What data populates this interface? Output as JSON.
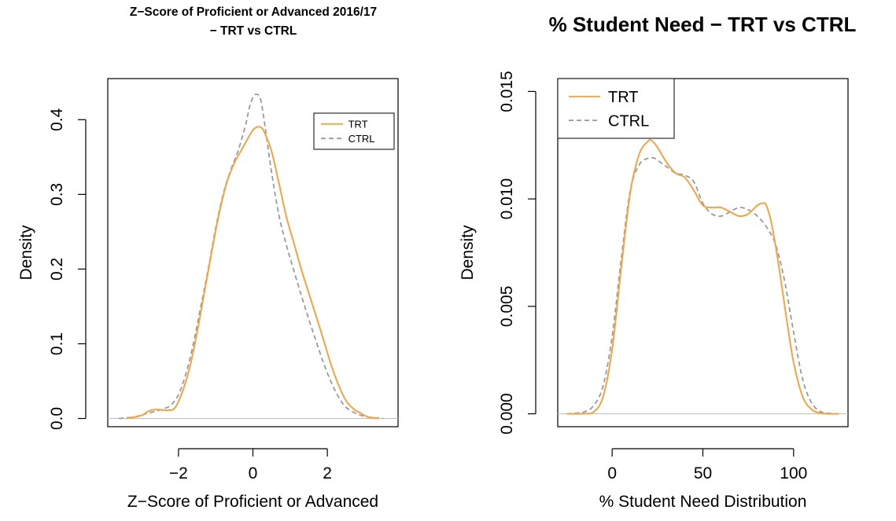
{
  "colors": {
    "trt": "#f4a340",
    "ctrl": "#9a9a9a",
    "baseline": "#bdbdbd"
  },
  "chart_data": [
    {
      "type": "line",
      "title_lines": [
        "Z−Score of Proficient or Advanced 2016/17",
        "− TRT vs CTRL"
      ],
      "xlabel": "Z−Score of Proficient or Advanced",
      "ylabel": "Density",
      "xlim": [
        -3.9,
        3.9
      ],
      "ylim": [
        -0.011,
        0.455
      ],
      "xticks": [
        -2,
        0,
        2
      ],
      "xtick_labels": [
        "−2",
        "0",
        "2"
      ],
      "yticks": [
        0.0,
        0.1,
        0.2,
        0.3,
        0.4
      ],
      "ytick_labels": [
        "0.0",
        "0.1",
        "0.2",
        "0.3",
        "0.4"
      ],
      "legend": {
        "position": "top-right",
        "entries": [
          "TRT",
          "CTRL"
        ]
      },
      "series": [
        {
          "name": "TRT",
          "style": "solid",
          "x": [
            -3.4,
            -3.0,
            -2.8,
            -2.6,
            -2.3,
            -2.1,
            -1.9,
            -1.7,
            -1.5,
            -1.3,
            -1.1,
            -0.9,
            -0.7,
            -0.5,
            -0.3,
            -0.1,
            0.0,
            0.1,
            0.2,
            0.3,
            0.5,
            0.7,
            0.9,
            1.1,
            1.3,
            1.5,
            1.7,
            1.9,
            2.1,
            2.3,
            2.5,
            2.7,
            2.9,
            3.1,
            3.4
          ],
          "y": [
            0.0,
            0.004,
            0.01,
            0.012,
            0.011,
            0.014,
            0.035,
            0.068,
            0.115,
            0.17,
            0.225,
            0.276,
            0.316,
            0.342,
            0.36,
            0.378,
            0.386,
            0.39,
            0.39,
            0.384,
            0.358,
            0.315,
            0.27,
            0.235,
            0.2,
            0.168,
            0.137,
            0.105,
            0.072,
            0.045,
            0.024,
            0.013,
            0.007,
            0.002,
            0.0
          ]
        },
        {
          "name": "CTRL",
          "style": "dashed",
          "x": [
            -3.6,
            -3.2,
            -2.9,
            -2.6,
            -2.4,
            -2.2,
            -2.0,
            -1.8,
            -1.6,
            -1.4,
            -1.2,
            -1.0,
            -0.8,
            -0.6,
            -0.4,
            -0.2,
            -0.1,
            0.0,
            0.1,
            0.2,
            0.3,
            0.5,
            0.7,
            0.9,
            1.1,
            1.3,
            1.5,
            1.7,
            1.9,
            2.1,
            2.3,
            2.5,
            2.8,
            3.1,
            3.5
          ],
          "y": [
            0.0,
            0.002,
            0.006,
            0.01,
            0.013,
            0.018,
            0.032,
            0.06,
            0.1,
            0.15,
            0.2,
            0.255,
            0.3,
            0.332,
            0.358,
            0.392,
            0.415,
            0.43,
            0.434,
            0.428,
            0.4,
            0.33,
            0.272,
            0.232,
            0.198,
            0.165,
            0.133,
            0.103,
            0.074,
            0.049,
            0.029,
            0.015,
            0.006,
            0.002,
            0.0
          ]
        }
      ]
    },
    {
      "type": "line",
      "title_lines": [
        "% Student Need − TRT vs CTRL"
      ],
      "xlabel": "% Student Need Distribution",
      "ylabel": "Density",
      "xlim": [
        -30,
        130
      ],
      "ylim": [
        -0.0006,
        0.0156
      ],
      "xticks": [
        0,
        50,
        100
      ],
      "xtick_labels": [
        "0",
        "50",
        "100"
      ],
      "yticks": [
        0.0,
        0.005,
        0.01,
        0.015
      ],
      "ytick_labels": [
        "0.000",
        "0.005",
        "0.010",
        "0.015"
      ],
      "legend": {
        "position": "top-left",
        "entries": [
          "TRT",
          "CTRL"
        ]
      },
      "series": [
        {
          "name": "TRT",
          "style": "solid",
          "x": [
            -25,
            -15,
            -10,
            -5,
            0,
            5,
            10,
            15,
            20,
            22,
            25,
            30,
            35,
            40,
            45,
            50,
            55,
            60,
            65,
            70,
            75,
            80,
            83,
            85,
            88,
            92,
            96,
            100,
            105,
            110,
            115,
            120,
            125
          ],
          "y": [
            0.0,
            1e-05,
            0.0001,
            0.0008,
            0.003,
            0.0068,
            0.0103,
            0.0121,
            0.0127,
            0.0127,
            0.0124,
            0.0117,
            0.0112,
            0.011,
            0.0104,
            0.0097,
            0.0096,
            0.0096,
            0.0094,
            0.0092,
            0.0093,
            0.0097,
            0.0098,
            0.0097,
            0.0088,
            0.0068,
            0.0045,
            0.0024,
            0.0008,
            0.0002,
            3e-05,
            0.0,
            0.0
          ]
        },
        {
          "name": "CTRL",
          "style": "dashed",
          "x": [
            -25,
            -20,
            -15,
            -10,
            -5,
            0,
            5,
            10,
            15,
            20,
            23,
            25,
            30,
            35,
            40,
            45,
            50,
            55,
            60,
            65,
            70,
            75,
            80,
            85,
            90,
            95,
            100,
            105,
            110,
            115,
            120,
            125
          ],
          "y": [
            0.0,
            3e-05,
            0.0001,
            0.0004,
            0.0013,
            0.0036,
            0.0072,
            0.0104,
            0.0116,
            0.0119,
            0.0119,
            0.0118,
            0.0115,
            0.0112,
            0.0111,
            0.0108,
            0.0098,
            0.0093,
            0.0092,
            0.0094,
            0.0096,
            0.0095,
            0.0092,
            0.0087,
            0.0079,
            0.0062,
            0.0038,
            0.0016,
            0.0005,
            0.0001,
            2e-05,
            0.0
          ]
        }
      ]
    }
  ]
}
